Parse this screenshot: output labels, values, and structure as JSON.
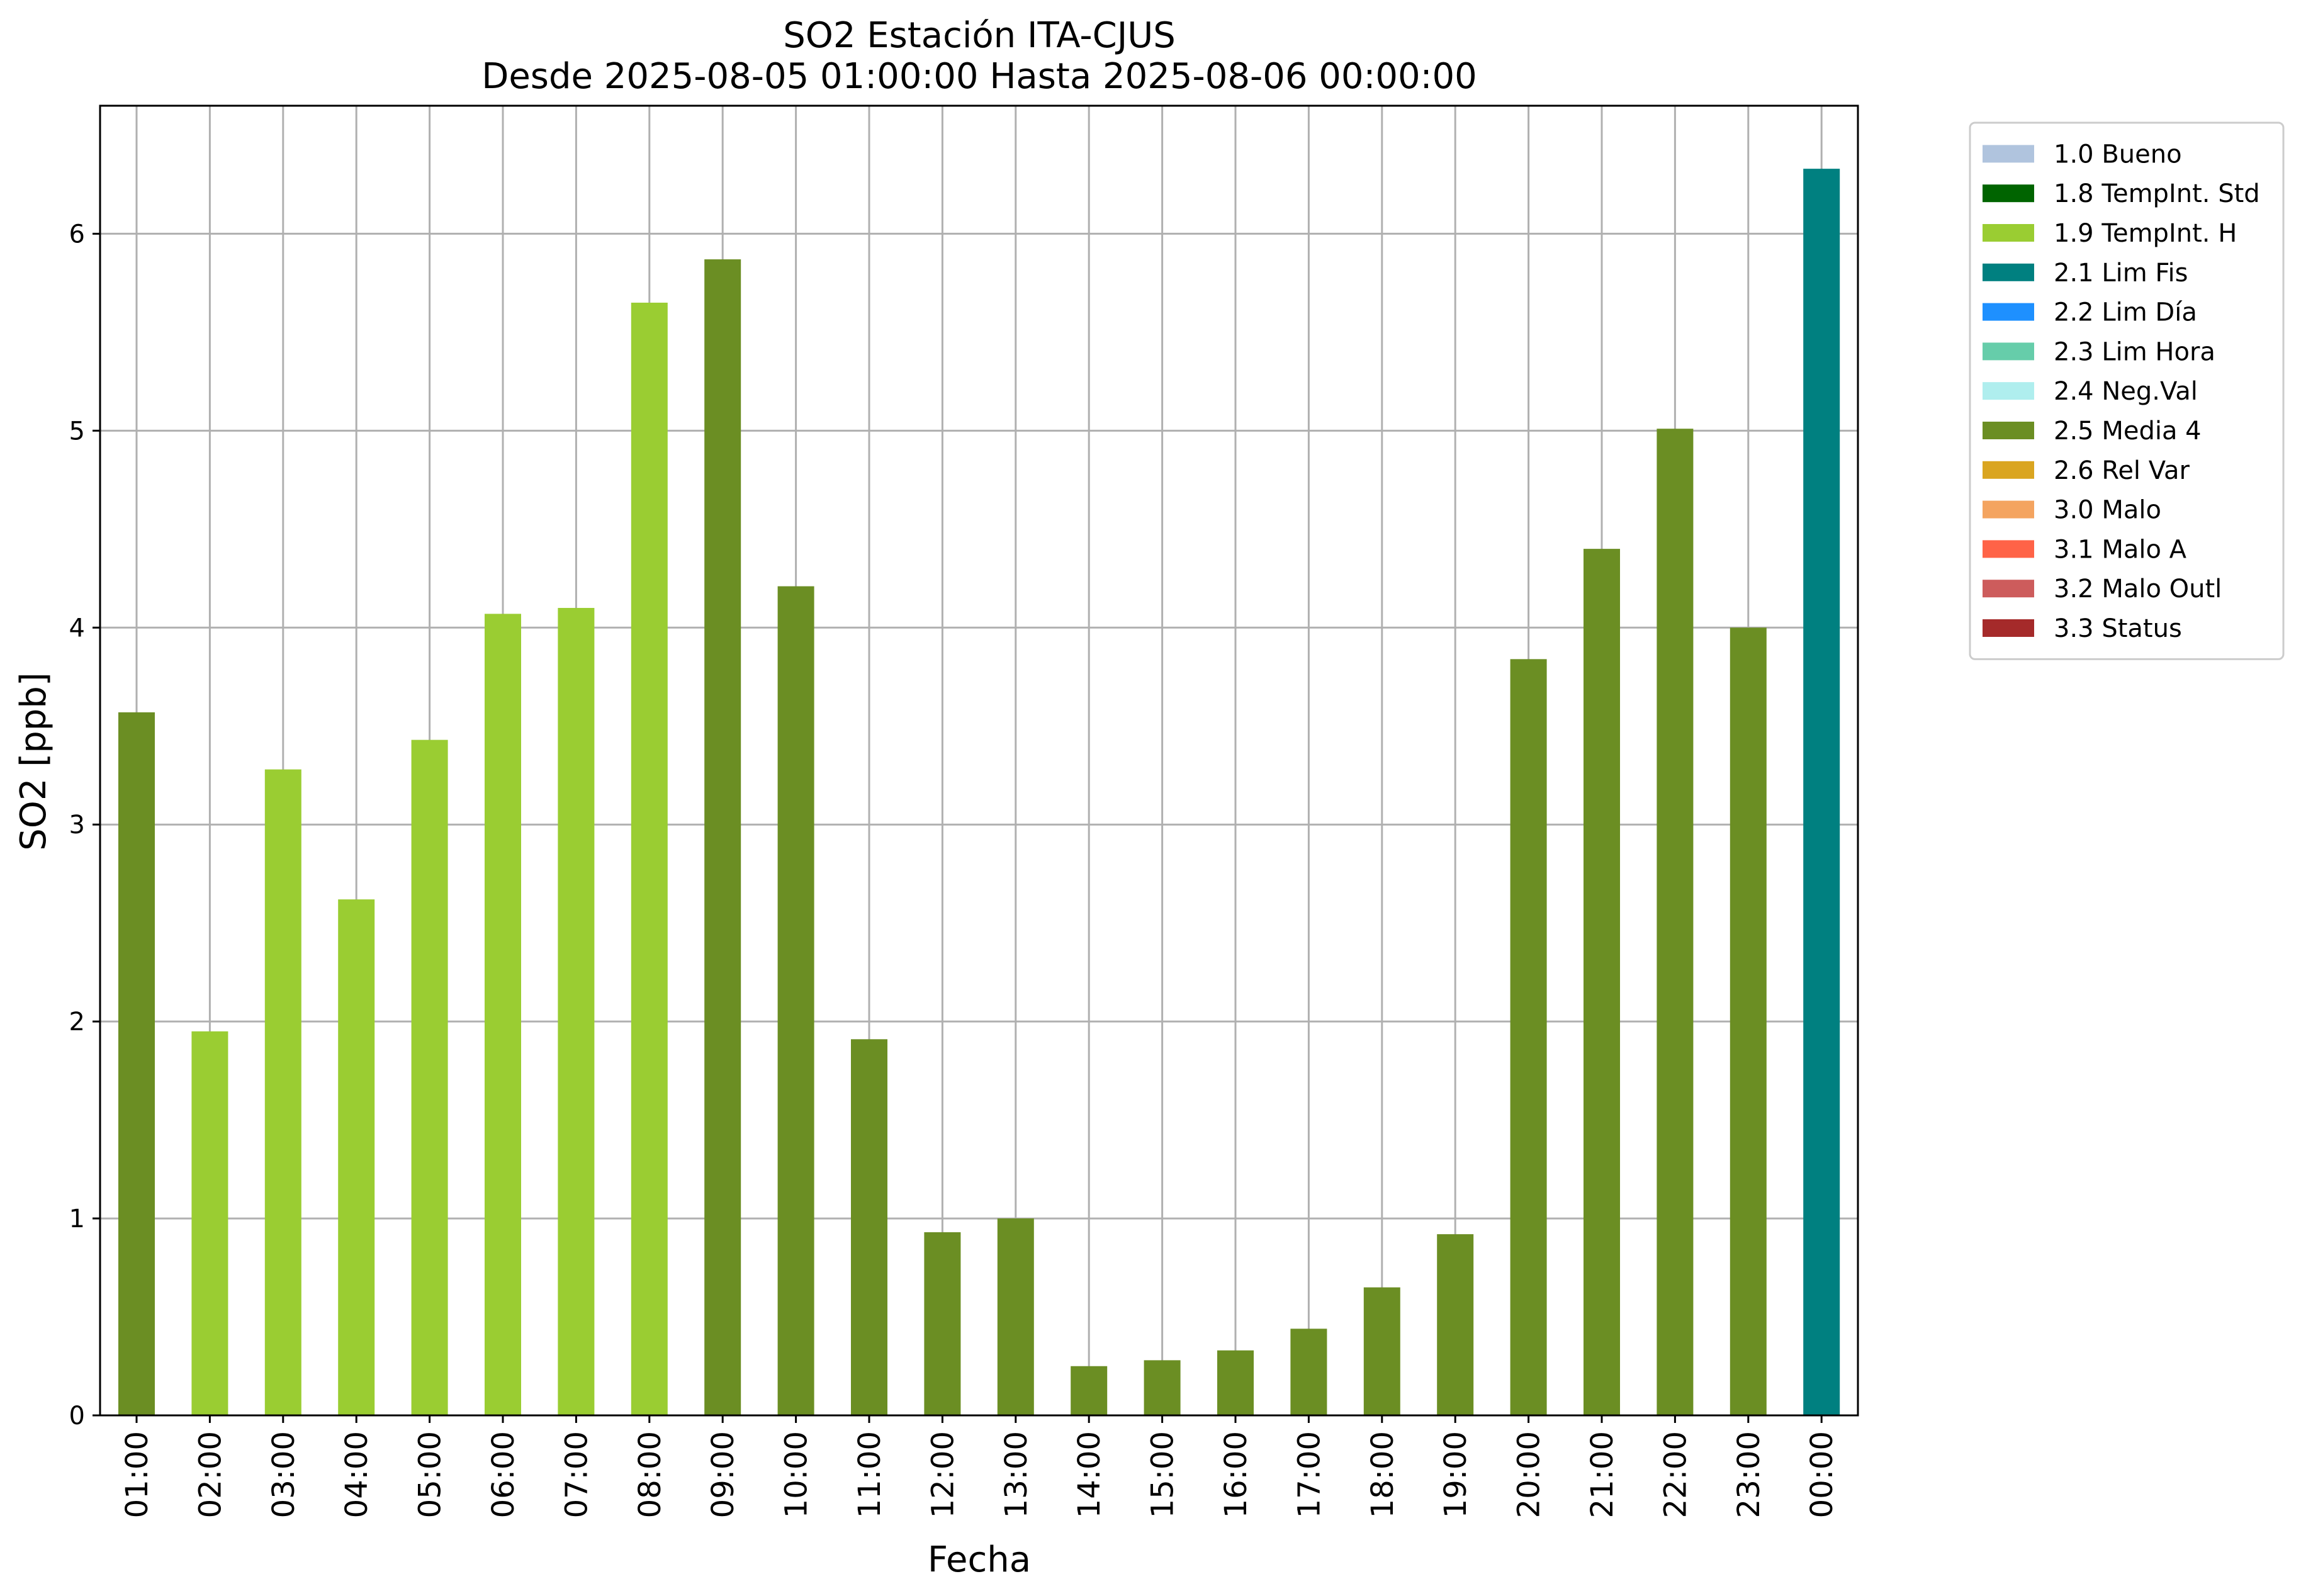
{
  "chart_data": {
    "type": "bar",
    "title": "SO2 Estación ITA-CJUS",
    "subtitle": "Desde 2025-08-05 01:00:00 Hasta 2025-08-06 00:00:00",
    "xlabel": "Fecha",
    "ylabel": "SO2 [ppb]",
    "ylim": [
      0,
      6.65
    ],
    "yticks": [
      "0",
      "1",
      "2",
      "3",
      "4",
      "5",
      "6"
    ],
    "grid": true,
    "legend_position": "outside-top-right",
    "categories": [
      "01:00",
      "02:00",
      "03:00",
      "04:00",
      "05:00",
      "06:00",
      "07:00",
      "08:00",
      "09:00",
      "10:00",
      "11:00",
      "12:00",
      "13:00",
      "14:00",
      "15:00",
      "16:00",
      "17:00",
      "18:00",
      "19:00",
      "20:00",
      "21:00",
      "22:00",
      "23:00",
      "00:00"
    ],
    "values": [
      3.57,
      1.95,
      3.28,
      2.62,
      3.43,
      4.07,
      4.1,
      5.65,
      5.87,
      4.21,
      1.91,
      0.93,
      1.0,
      0.25,
      0.28,
      0.33,
      0.44,
      0.65,
      0.92,
      3.84,
      4.4,
      5.01,
      4.0,
      6.33
    ],
    "flags": [
      "2.5 Media 4",
      "1.9 TempInt. H",
      "1.9 TempInt. H",
      "1.9 TempInt. H",
      "1.9 TempInt. H",
      "1.9 TempInt. H",
      "1.9 TempInt. H",
      "1.9 TempInt. H",
      "2.5 Media 4",
      "2.5 Media 4",
      "2.5 Media 4",
      "2.5 Media 4",
      "2.5 Media 4",
      "2.5 Media 4",
      "2.5 Media 4",
      "2.5 Media 4",
      "2.5 Media 4",
      "2.5 Media 4",
      "2.5 Media 4",
      "2.5 Media 4",
      "2.5 Media 4",
      "2.5 Media 4",
      "2.5 Media 4",
      "2.1 Lim Fis"
    ],
    "legend": [
      {
        "label": "1.0 Bueno",
        "color": "#b0c4de"
      },
      {
        "label": "1.8 TempInt. Std",
        "color": "#006400"
      },
      {
        "label": "1.9 TempInt. H",
        "color": "#9acd32"
      },
      {
        "label": "2.1 Lim Fis",
        "color": "#008080"
      },
      {
        "label": "2.2 Lim Día",
        "color": "#1e90ff"
      },
      {
        "label": "2.3 Lim Hora",
        "color": "#66cdaa"
      },
      {
        "label": "2.4 Neg.Val",
        "color": "#afeeee"
      },
      {
        "label": "2.5 Media 4",
        "color": "#6b8e23"
      },
      {
        "label": "2.6 Rel Var",
        "color": "#daa520"
      },
      {
        "label": "3.0 Malo",
        "color": "#f4a460"
      },
      {
        "label": "3.1 Malo A",
        "color": "#ff6347"
      },
      {
        "label": "3.2 Malo Outl",
        "color": "#cd5c5c"
      },
      {
        "label": "3.3 Status",
        "color": "#a52a2a"
      }
    ]
  }
}
